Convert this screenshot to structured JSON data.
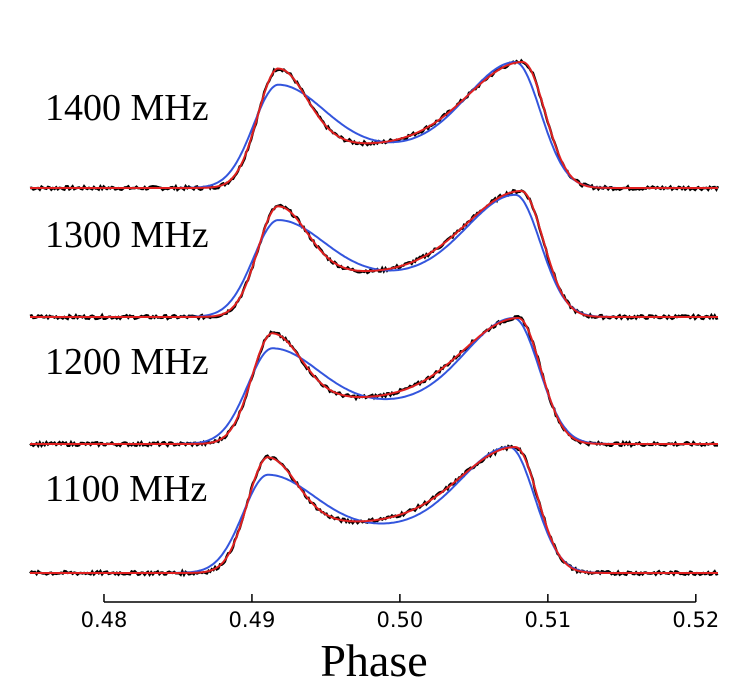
{
  "chart_data": {
    "type": "line",
    "title": "",
    "xlabel": "Phase",
    "ylabel": "",
    "xlim": [
      0.475,
      0.5215
    ],
    "xticks": [
      0.48,
      0.49,
      0.5,
      0.51,
      0.52
    ],
    "xtick_labels": [
      "0.48",
      "0.49",
      "0.50",
      "0.51",
      "0.52"
    ],
    "y_grid": false,
    "legend": "none",
    "series_colors": {
      "data": "#000000",
      "model_blue": "#3355dd",
      "model_red": "#e02020"
    },
    "bands": [
      {
        "label": "1400 MHz",
        "baseline": 0.0,
        "peak1": {
          "phase": 0.4918,
          "amp": 0.95,
          "blue_amp": 0.82
        },
        "dip": {
          "phase": 0.498,
          "amp": 0.36,
          "blue_phase": 0.4995,
          "blue_amp": 0.34
        },
        "peak2": {
          "phase": 0.5083,
          "amp": 1.0,
          "blue_phase": 0.5078,
          "blue_amp": 1.0
        }
      },
      {
        "label": "1300 MHz",
        "baseline": 0.0,
        "peak1": {
          "phase": 0.4918,
          "amp": 0.88,
          "blue_amp": 0.77
        },
        "dip": {
          "phase": 0.498,
          "amp": 0.37,
          "blue_phase": 0.4993,
          "blue_amp": 0.35
        },
        "peak2": {
          "phase": 0.5082,
          "amp": 1.0,
          "blue_phase": 0.5078,
          "blue_amp": 0.97
        }
      },
      {
        "label": "1200 MHz",
        "baseline": 0.0,
        "peak1": {
          "phase": 0.4914,
          "amp": 0.88,
          "blue_amp": 0.76
        },
        "dip": {
          "phase": 0.4975,
          "amp": 0.38,
          "blue_phase": 0.4992,
          "blue_amp": 0.34
        },
        "peak2": {
          "phase": 0.508,
          "amp": 1.0,
          "blue_phase": 0.5077,
          "blue_amp": 1.0
        }
      },
      {
        "label": "1100 MHz",
        "baseline": 0.0,
        "peak1": {
          "phase": 0.4911,
          "amp": 0.92,
          "blue_amp": 0.78
        },
        "dip": {
          "phase": 0.497,
          "amp": 0.42,
          "blue_phase": 0.499,
          "blue_amp": 0.38
        },
        "peak2": {
          "phase": 0.5078,
          "amp": 1.0,
          "blue_phase": 0.5074,
          "blue_amp": 1.0
        }
      }
    ]
  }
}
